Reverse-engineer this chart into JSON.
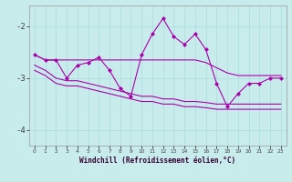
{
  "xlabel": "Windchill (Refroidissement éolien,°C)",
  "x": [
    0,
    1,
    2,
    3,
    4,
    5,
    6,
    7,
    8,
    9,
    10,
    11,
    12,
    13,
    14,
    15,
    16,
    17,
    18,
    19,
    20,
    21,
    22,
    23
  ],
  "y_main": [
    -2.55,
    -2.65,
    -2.65,
    -3.0,
    -2.75,
    -2.7,
    -2.6,
    -2.85,
    -3.2,
    -3.35,
    -2.55,
    -2.15,
    -1.85,
    -2.2,
    -2.35,
    -2.15,
    -2.45,
    -3.1,
    -3.55,
    -3.3,
    -3.1,
    -3.1,
    -3.0,
    -3.0
  ],
  "y_upper": [
    -2.55,
    -2.65,
    -2.65,
    -2.65,
    -2.65,
    -2.65,
    -2.65,
    -2.65,
    -2.65,
    -2.65,
    -2.65,
    -2.65,
    -2.65,
    -2.65,
    -2.65,
    -2.65,
    -2.7,
    -2.8,
    -2.9,
    -2.95,
    -2.95,
    -2.95,
    -2.95,
    -2.95
  ],
  "y_lower1": [
    -2.75,
    -2.85,
    -3.0,
    -3.05,
    -3.05,
    -3.1,
    -3.15,
    -3.2,
    -3.25,
    -3.3,
    -3.35,
    -3.35,
    -3.4,
    -3.4,
    -3.45,
    -3.45,
    -3.47,
    -3.5,
    -3.5,
    -3.5,
    -3.5,
    -3.5,
    -3.5,
    -3.5
  ],
  "y_lower2": [
    -2.85,
    -2.95,
    -3.1,
    -3.15,
    -3.15,
    -3.2,
    -3.25,
    -3.3,
    -3.35,
    -3.4,
    -3.45,
    -3.45,
    -3.5,
    -3.5,
    -3.55,
    -3.55,
    -3.57,
    -3.6,
    -3.6,
    -3.6,
    -3.6,
    -3.6,
    -3.6,
    -3.6
  ],
  "ylim": [
    -4.3,
    -1.6
  ],
  "yticks": [
    -4,
    -3,
    -2
  ],
  "xlim": [
    -0.5,
    23.5
  ],
  "bg_color": "#c8ecec",
  "line_color": "#aa00aa",
  "grid_color": "#aadddd",
  "line_width": 0.8,
  "marker": "D",
  "marker_size": 2.5,
  "xlabel_fontsize": 5.5,
  "ytick_fontsize": 6.5,
  "xtick_fontsize": 4.2
}
